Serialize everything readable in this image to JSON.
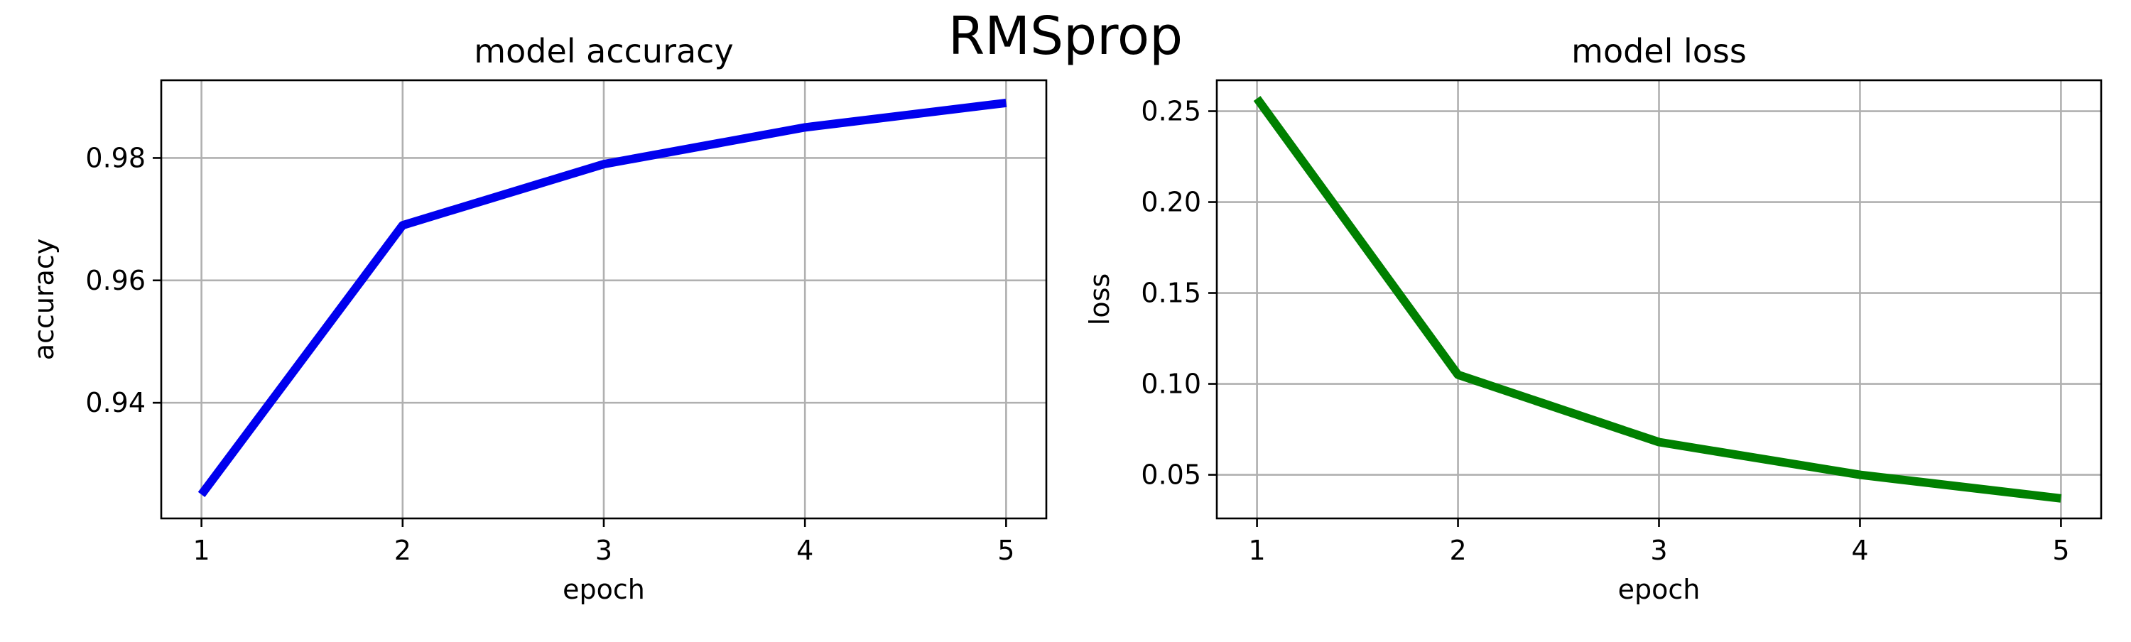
{
  "figure": {
    "suptitle": "RMSprop"
  },
  "chart_data": [
    {
      "type": "line",
      "title": "model accuracy",
      "xlabel": "epoch",
      "ylabel": "accuracy",
      "x": [
        1,
        2,
        3,
        4,
        5
      ],
      "xticks": [
        1,
        2,
        3,
        4,
        5
      ],
      "yticks": [
        0.94,
        0.96,
        0.98
      ],
      "ytick_labels": [
        "0.94",
        "0.96",
        "0.98"
      ],
      "xlim": [
        0.8,
        5.2
      ],
      "ylim": [
        0.9211,
        0.9927
      ],
      "grid": true,
      "series": [
        {
          "values": [
            0.925,
            0.969,
            0.979,
            0.985,
            0.989
          ],
          "color": "#0000ee"
        }
      ]
    },
    {
      "type": "line",
      "title": "model loss",
      "xlabel": "epoch",
      "ylabel": "loss",
      "x": [
        1,
        2,
        3,
        4,
        5
      ],
      "xticks": [
        1,
        2,
        3,
        4,
        5
      ],
      "yticks": [
        0.05,
        0.1,
        0.15,
        0.2,
        0.25
      ],
      "ytick_labels": [
        "0.05",
        "0.10",
        "0.15",
        "0.20",
        "0.25"
      ],
      "xlim": [
        0.8,
        5.2
      ],
      "ylim": [
        0.026,
        0.267
      ],
      "grid": true,
      "series": [
        {
          "values": [
            0.257,
            0.105,
            0.068,
            0.05,
            0.037
          ],
          "color": "#008000"
        }
      ]
    }
  ]
}
